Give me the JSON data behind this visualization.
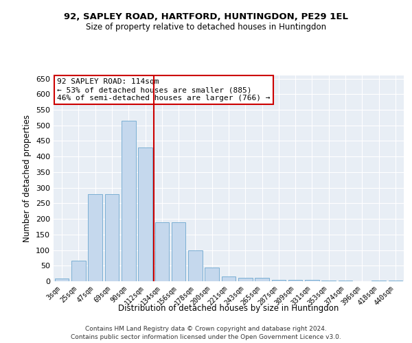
{
  "title": "92, SAPLEY ROAD, HARTFORD, HUNTINGDON, PE29 1EL",
  "subtitle": "Size of property relative to detached houses in Huntingdon",
  "xlabel": "Distribution of detached houses by size in Huntingdon",
  "ylabel": "Number of detached properties",
  "bar_labels": [
    "3sqm",
    "25sqm",
    "47sqm",
    "69sqm",
    "90sqm",
    "112sqm",
    "134sqm",
    "156sqm",
    "178sqm",
    "200sqm",
    "221sqm",
    "243sqm",
    "265sqm",
    "287sqm",
    "309sqm",
    "331sqm",
    "353sqm",
    "374sqm",
    "396sqm",
    "418sqm",
    "440sqm"
  ],
  "bar_values": [
    8,
    65,
    280,
    280,
    515,
    430,
    190,
    190,
    100,
    45,
    15,
    10,
    10,
    5,
    5,
    4,
    3,
    2,
    0,
    3,
    2
  ],
  "bar_color": "#c5d8ed",
  "bar_edgecolor": "#7bafd4",
  "vline_x": 5.5,
  "vline_color": "#cc0000",
  "annotation_text": "92 SAPLEY ROAD: 114sqm\n← 53% of detached houses are smaller (885)\n46% of semi-detached houses are larger (766) →",
  "annotation_box_color": "#ffffff",
  "annotation_box_edgecolor": "#cc0000",
  "ylim": [
    0,
    660
  ],
  "yticks": [
    0,
    50,
    100,
    150,
    200,
    250,
    300,
    350,
    400,
    450,
    500,
    550,
    600,
    650
  ],
  "bg_color": "#e8eef5",
  "footer_line1": "Contains HM Land Registry data © Crown copyright and database right 2024.",
  "footer_line2": "Contains public sector information licensed under the Open Government Licence v3.0."
}
